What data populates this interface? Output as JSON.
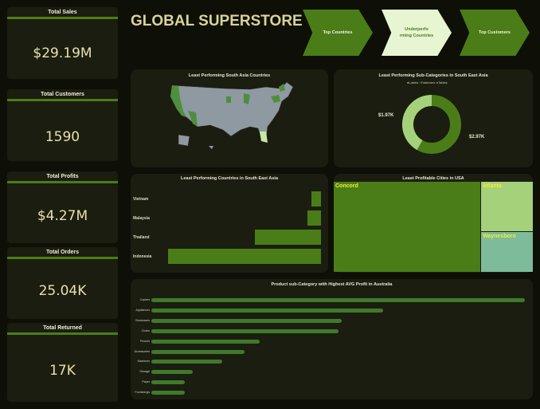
{
  "header": {
    "title": "GLOBAL SUPERSTORE"
  },
  "kpis": [
    {
      "title": "Total Sales",
      "value": "$29.19M"
    },
    {
      "title": "Total Customers",
      "value": "1590"
    },
    {
      "title": "Total Profits",
      "value": "$4.27M"
    },
    {
      "title": "Total Orders",
      "value": "25.04K"
    },
    {
      "title": "Total Returned",
      "value": "17K"
    }
  ],
  "nav": [
    {
      "label": "Top Countries"
    },
    {
      "label": "Underperfo rming Countries"
    },
    {
      "label": "Top Customers"
    }
  ],
  "map": {
    "title": "Least Performing South Asia Countries"
  },
  "donut": {
    "title": "Least Performing Sub-Categories in South East Asia",
    "legend": [
      "Labels",
      "Fasteners",
      "Tables"
    ],
    "label_left": "$1.97K",
    "label_right": "$2.97K"
  },
  "colors": {
    "accent": "#4a7d18",
    "light": "#a5d17a",
    "teal": "#7dbb9b",
    "bg": "#0e0f06",
    "panel": "#1b1d10"
  },
  "bar_chart": {
    "title": "Least Performing Countries in South East Asia"
  },
  "treemap": {
    "title": "Least Profitable Cities in USA",
    "cells": [
      "Concord",
      "Atlanta",
      "Waynesboro"
    ]
  },
  "au_chart": {
    "title": "Product sub-Category with Highest AVG Profit in Australia"
  },
  "chart_data": [
    {
      "type": "pie",
      "title": "Least Performing Sub-Categories in South East Asia",
      "labels": [
        "Labels",
        "Fasteners",
        "Tables"
      ],
      "values": [
        1.97,
        0,
        2.97
      ],
      "unit": "K"
    },
    {
      "type": "bar",
      "title": "Least Performing Countries in South East Asia",
      "categories": [
        "Vietnam",
        "Malaysia",
        "Thailand",
        "Indonesia"
      ],
      "values": [
        0.06,
        0.09,
        0.43,
        0.99
      ]
    },
    {
      "type": "bar",
      "title": "Product sub-Category with Highest AVG Profit in Australia",
      "categories": [
        "Copiers",
        "Appliances",
        "Bookcases",
        "Chairs",
        "Phones",
        "Accessories",
        "Machines",
        "Storage",
        "Paper",
        "Furnishings"
      ],
      "values": [
        1.0,
        0.62,
        0.51,
        0.5,
        0.29,
        0.25,
        0.19,
        0.11,
        0.09,
        0.09
      ]
    }
  ]
}
